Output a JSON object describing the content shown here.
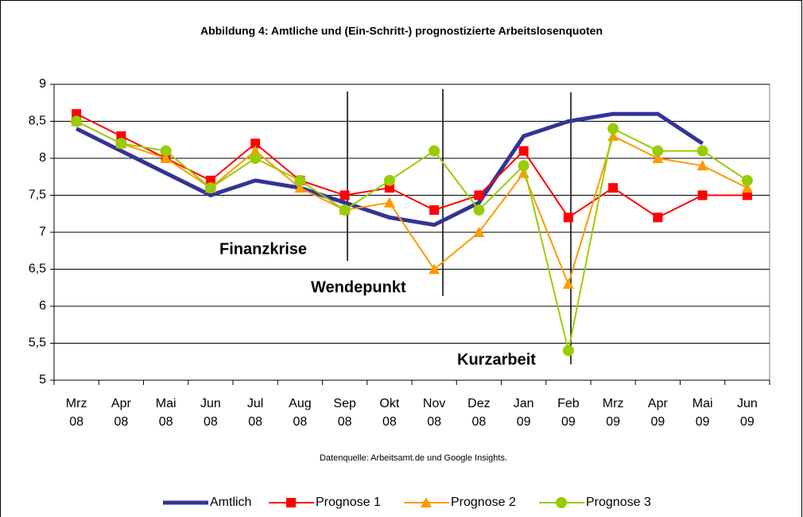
{
  "chart_data": {
    "type": "line",
    "title": "Abbildung 4: Amtliche und (Ein-Schritt-) prognostizierte Arbeitslosenquoten",
    "source": "Datenquelle: Arbeitsamt.de und Google Insights.",
    "categories": [
      [
        "Mrz",
        "08"
      ],
      [
        "Apr",
        "08"
      ],
      [
        "Mai",
        "08"
      ],
      [
        "Jun",
        "08"
      ],
      [
        "Jul",
        "08"
      ],
      [
        "Aug",
        "08"
      ],
      [
        "Sep",
        "08"
      ],
      [
        "Okt",
        "08"
      ],
      [
        "Nov",
        "08"
      ],
      [
        "Dez",
        "08"
      ],
      [
        "Jan",
        "09"
      ],
      [
        "Feb",
        "09"
      ],
      [
        "Mrz",
        "09"
      ],
      [
        "Apr",
        "09"
      ],
      [
        "Mai",
        "09"
      ],
      [
        "Jun",
        "09"
      ]
    ],
    "series": [
      {
        "name": "Amtlich",
        "color": "#333399",
        "marker": "none",
        "values": [
          8.4,
          8.1,
          7.8,
          7.5,
          7.7,
          7.6,
          7.4,
          7.2,
          7.1,
          7.4,
          8.3,
          8.5,
          8.6,
          8.6,
          8.2,
          null
        ]
      },
      {
        "name": "Prognose 1",
        "color": "#ff0000",
        "marker": "square",
        "values": [
          8.6,
          8.3,
          8.0,
          7.7,
          8.2,
          7.7,
          7.5,
          7.6,
          7.3,
          7.5,
          8.1,
          7.2,
          7.6,
          7.2,
          7.5,
          7.5
        ]
      },
      {
        "name": "Prognose 2",
        "color": "#ff9900",
        "marker": "triangle",
        "values": [
          8.5,
          8.2,
          8.0,
          7.6,
          8.1,
          7.6,
          7.3,
          7.4,
          6.5,
          7.0,
          7.8,
          6.3,
          8.3,
          8.0,
          7.9,
          7.6
        ]
      },
      {
        "name": "Prognose 3",
        "color": "#99cc00",
        "marker": "circle",
        "values": [
          8.5,
          8.2,
          8.1,
          7.6,
          8.0,
          7.7,
          7.3,
          7.7,
          8.1,
          7.3,
          7.9,
          5.4,
          8.4,
          8.1,
          8.1,
          7.7
        ]
      }
    ],
    "ylim": [
      5,
      9
    ],
    "yticks": [
      5,
      {
        "value": 5.5,
        "label": "5,5"
      },
      6,
      {
        "value": 6.5,
        "label": "6,5"
      },
      7,
      {
        "value": 7.5,
        "label": "7,5"
      },
      8,
      {
        "value": 8.5,
        "label": "8,5"
      },
      9
    ],
    "grid": true,
    "legend": "bottom",
    "annotations": [
      "Finanzkrise",
      "Wendepunkt",
      "Kurzarbeit"
    ]
  }
}
